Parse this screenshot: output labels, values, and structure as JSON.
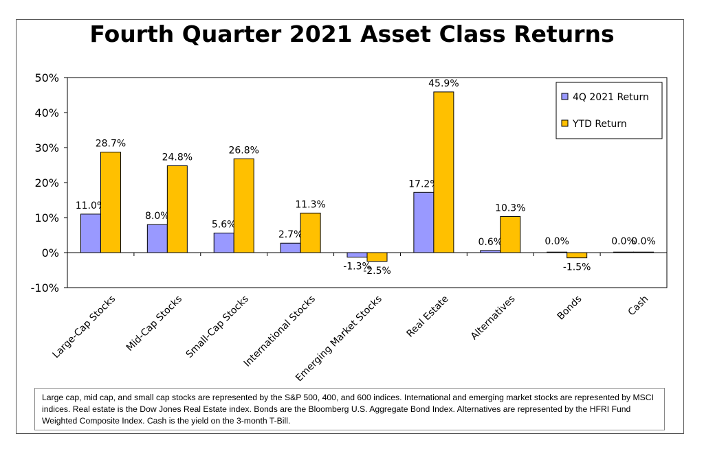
{
  "chart_data": {
    "type": "bar",
    "title": "Fourth Quarter 2021 Asset Class Returns",
    "categories": [
      "Large-Cap Stocks",
      "Mid-Cap Stocks",
      "Small-Cap Stocks",
      "International Stocks",
      "Emerging Market Stocks",
      "Real Estate",
      "Alternatives",
      "Bonds",
      "Cash"
    ],
    "series": [
      {
        "name": "4Q 2021 Return",
        "color": "#9999ff",
        "values": [
          11.0,
          8.0,
          5.6,
          2.7,
          -1.3,
          17.2,
          0.6,
          0.0,
          0.0
        ],
        "labels": [
          "11.0%",
          "8.0%",
          "5.6%",
          "2.7%",
          "-1.3%",
          "17.2%",
          "0.6%",
          "0.0%",
          "0.0%"
        ]
      },
      {
        "name": "YTD Return",
        "color": "#ffc000",
        "values": [
          28.7,
          24.8,
          26.8,
          11.3,
          -2.5,
          45.9,
          10.3,
          -1.5,
          0.0
        ],
        "labels": [
          "28.7%",
          "24.8%",
          "26.8%",
          "11.3%",
          "-2.5%",
          "45.9%",
          "10.3%",
          "-1.5%",
          "0.0%"
        ]
      }
    ],
    "ylim": [
      -10,
      50
    ],
    "yticks": [
      50,
      40,
      30,
      20,
      10,
      0,
      -10
    ],
    "ytick_labels": [
      "50%",
      "40%",
      "30%",
      "20%",
      "10%",
      "0%",
      "-10%"
    ],
    "xlabel": "",
    "ylabel": "",
    "legend": "top-right",
    "grid": false
  },
  "footnote": "Large cap, mid cap, and small cap stocks are represented by the S&P 500, 400, and 600 indices.  International  and emerging market stocks are represented by MSCI indices.  Real estate is the Dow Jones Real Estate index.  Bonds are the Bloomberg U.S. Aggregate Bond Index.  Alternatives  are represented by the HFRI Fund Weighted  Composite Index.  Cash is the yield on the 3-month T-Bill."
}
